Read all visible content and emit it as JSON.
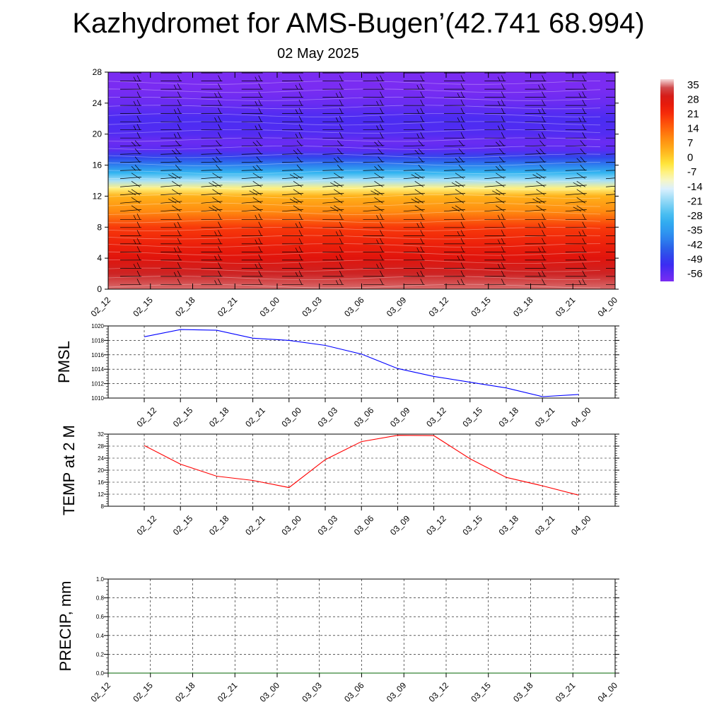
{
  "title": "Kazhydromet for AMS-Bugen’(42.741 68.994)",
  "subtitle": "02 May 2025",
  "chart_data": [
    {
      "type": "heatmap",
      "name": "vertical-section",
      "ylim": [
        0,
        28
      ],
      "yticks": [
        "0",
        "4",
        "8",
        "12",
        "16",
        "20",
        "24",
        "28"
      ],
      "xticks": [
        "02_12",
        "02_15",
        "02_18",
        "02_21",
        "03_00",
        "03_03",
        "03_06",
        "03_09",
        "03_12",
        "03_15",
        "03_18",
        "03_21",
        "04_00"
      ],
      "colorbar": {
        "labels": [
          "35",
          "28",
          "21",
          "14",
          "7",
          "0",
          "-7",
          "-14",
          "-21",
          "-28",
          "-35",
          "-42",
          "-49",
          "-56"
        ],
        "range": [
          -60,
          36
        ]
      },
      "temperature_profile": {
        "heights": [
          0,
          2,
          4,
          6,
          8,
          10,
          12,
          13,
          14,
          15,
          16,
          17,
          18,
          19,
          20,
          22,
          24,
          26,
          28
        ],
        "values": [
          33,
          30,
          26,
          22,
          18,
          8,
          2,
          -8,
          -20,
          -30,
          -40,
          -48,
          -56,
          -58,
          -55,
          -54,
          -58,
          -62,
          -64
        ]
      },
      "wind_barbs": true
    },
    {
      "type": "line",
      "name": "pmsl",
      "ylabel": "PMSL",
      "ylim": [
        1010,
        1020
      ],
      "yticks": [
        "1010",
        "1012",
        "1014",
        "1016",
        "1018",
        "1020"
      ],
      "categories": [
        "02_12",
        "02_15",
        "02_18",
        "02_21",
        "03_00",
        "03_03",
        "03_06",
        "03_09",
        "03_12",
        "03_15",
        "03_18",
        "03_21",
        "04_00"
      ],
      "values": [
        1018.5,
        1019.5,
        1019.4,
        1018.3,
        1018.0,
        1017.3,
        1016.1,
        1014.1,
        1013.0,
        1012.2,
        1011.4,
        1010.2,
        1010.5
      ],
      "color": "#0000ff",
      "grid": true
    },
    {
      "type": "line",
      "name": "temp2m",
      "ylabel": "TEMP at 2 M",
      "ylim": [
        8,
        32
      ],
      "yticks": [
        "8",
        "12",
        "16",
        "20",
        "24",
        "28",
        "32"
      ],
      "categories": [
        "02_12",
        "02_15",
        "02_18",
        "02_21",
        "03_00",
        "03_03",
        "03_06",
        "03_09",
        "03_12",
        "03_15",
        "03_18",
        "03_21",
        "04_00"
      ],
      "values": [
        28.2,
        22.0,
        18.0,
        16.6,
        14.2,
        23.5,
        29.5,
        31.6,
        31.5,
        23.8,
        17.6,
        14.8,
        11.7
      ],
      "color": "#ff0000",
      "grid": true
    },
    {
      "type": "line",
      "name": "precip",
      "ylabel": "PRECIP, mm",
      "ylim": [
        0,
        1
      ],
      "yticks": [
        "0.0",
        "0.2",
        "0.4",
        "0.6",
        "0.8",
        "1.0"
      ],
      "xticks": [
        "02_12",
        "02_15",
        "02_18",
        "02_21",
        "03_00",
        "03_03",
        "03_06",
        "03_09",
        "03_12",
        "03_15",
        "03_18",
        "03_21",
        "04_00"
      ],
      "values": [
        0,
        0,
        0,
        0,
        0,
        0,
        0,
        0,
        0,
        0,
        0,
        0,
        0
      ],
      "color": "#006400",
      "grid": true
    }
  ]
}
